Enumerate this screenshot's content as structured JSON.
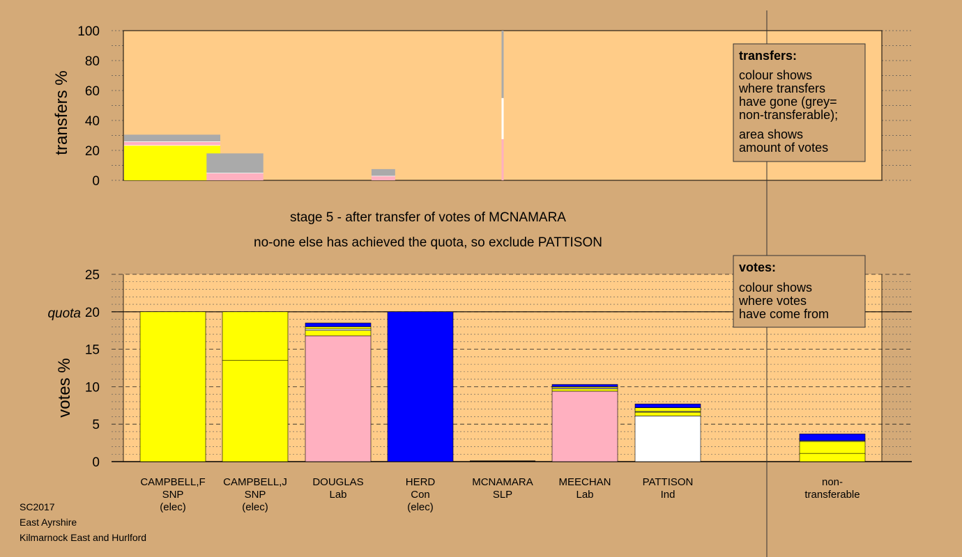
{
  "colors": {
    "background": "#d4aa78",
    "plot_bg": "#ffcc88",
    "SNP": "#ffff00",
    "Lab": "#ffb0c0",
    "Con": "#0000ff",
    "Ind": "#ffffff",
    "SLP": "#cc0000",
    "nontransferable": "#aaaaaa"
  },
  "stage_title": "stage 5 - after transfer of votes of MCNAMARA",
  "stage_subtitle": "no-one else has achieved the quota, so exclude PATTISON",
  "footer": {
    "line1": "SC2017",
    "line2": "East Ayrshire",
    "line3": "Kilmarnock East and Hurlford"
  },
  "legend_transfers": {
    "title": "transfers:",
    "lines1": [
      "colour shows",
      "where transfers",
      "have gone (grey=",
      "non-transferable);"
    ],
    "lines2": [
      "area shows",
      "amount of votes"
    ]
  },
  "legend_votes": {
    "title": "votes:",
    "lines": [
      "colour shows",
      "where votes",
      "have come from"
    ]
  },
  "chart_data": [
    {
      "type": "bar",
      "name": "transfers",
      "ylabel": "transfers %",
      "ylim": [
        0,
        100
      ],
      "yticks": [
        0,
        20,
        40,
        60,
        80,
        100
      ],
      "categories": [
        "CAMPBELL,F",
        "CAMPBELL,J",
        "DOUGLAS",
        "HERD",
        "MCNAMARA",
        "MEECHAN",
        "PATTISON"
      ],
      "transfer_share_of_votes": [
        30.5,
        18,
        0,
        7.5,
        0,
        0,
        0
      ],
      "transfer_composition": [
        [
          {
            "party": "SNP",
            "value": 23.5
          },
          {
            "party": "Lab",
            "value": 2.5
          },
          {
            "party": "nontransferable",
            "value": 4.5
          }
        ],
        [
          {
            "party": "Lab",
            "value": 5
          },
          {
            "party": "nontransferable",
            "value": 13
          }
        ],
        [],
        [
          {
            "party": "Lab",
            "value": 3
          },
          {
            "party": "nontransferable",
            "value": 4.5
          }
        ],
        [],
        [],
        []
      ],
      "exclusion_marker": {
        "candidate": "MCNAMARA",
        "segments": [
          {
            "party": "Lab",
            "value": 27.5
          },
          {
            "party": "Ind",
            "value": 27.5
          },
          {
            "party": "nontransferable",
            "value": 45
          }
        ]
      }
    },
    {
      "type": "bar",
      "name": "votes",
      "ylabel": "votes %",
      "ylim": [
        0,
        25
      ],
      "yticks": [
        0,
        5,
        10,
        15,
        20,
        25
      ],
      "quota": 20,
      "quota_label": "quota",
      "candidates": [
        {
          "name": "CAMPBELL,F",
          "party": "SNP",
          "status": "(elec)",
          "segments": [
            {
              "party": "SNP",
              "value": 20
            }
          ]
        },
        {
          "name": "CAMPBELL,J",
          "party": "SNP",
          "status": "(elec)",
          "segments": [
            {
              "party": "SNP",
              "value": 13.5
            },
            {
              "party": "SNP",
              "value": 6.5
            }
          ]
        },
        {
          "name": "DOUGLAS",
          "party": "Lab",
          "status": "",
          "segments": [
            {
              "party": "Lab",
              "value": 16.8
            },
            {
              "party": "SNP",
              "value": 0.7
            },
            {
              "party": "Ind",
              "value": 0.2
            },
            {
              "party": "SNP",
              "value": 0.3
            },
            {
              "party": "Con",
              "value": 0.5
            }
          ]
        },
        {
          "name": "HERD",
          "party": "Con",
          "status": "(elec)",
          "segments": [
            {
              "party": "Con",
              "value": 20
            }
          ]
        },
        {
          "name": "MCNAMARA",
          "party": "SLP",
          "status": "",
          "segments": []
        },
        {
          "name": "MEECHAN",
          "party": "Lab",
          "status": "",
          "segments": [
            {
              "party": "Lab",
              "value": 9.4
            },
            {
              "party": "SNP",
              "value": 0.3
            },
            {
              "party": "Ind",
              "value": 0.15
            },
            {
              "party": "SNP",
              "value": 0.15
            },
            {
              "party": "Con",
              "value": 0.3
            }
          ]
        },
        {
          "name": "PATTISON",
          "party": "Ind",
          "status": "",
          "segments": [
            {
              "party": "Ind",
              "value": 6.1
            },
            {
              "party": "SNP",
              "value": 0.5
            },
            {
              "party": "Ind",
              "value": 0.1
            },
            {
              "party": "SNP",
              "value": 0.5
            },
            {
              "party": "Con",
              "value": 0.5
            }
          ]
        },
        {
          "name": "non-\ntransferable",
          "party": "",
          "status": "",
          "segments": [
            {
              "party": "SNP",
              "value": 1.1
            },
            {
              "party": "SNP",
              "value": 1.6
            },
            {
              "party": "Ind",
              "value": 0.1
            },
            {
              "party": "Con",
              "value": 0.9
            }
          ]
        }
      ]
    }
  ]
}
